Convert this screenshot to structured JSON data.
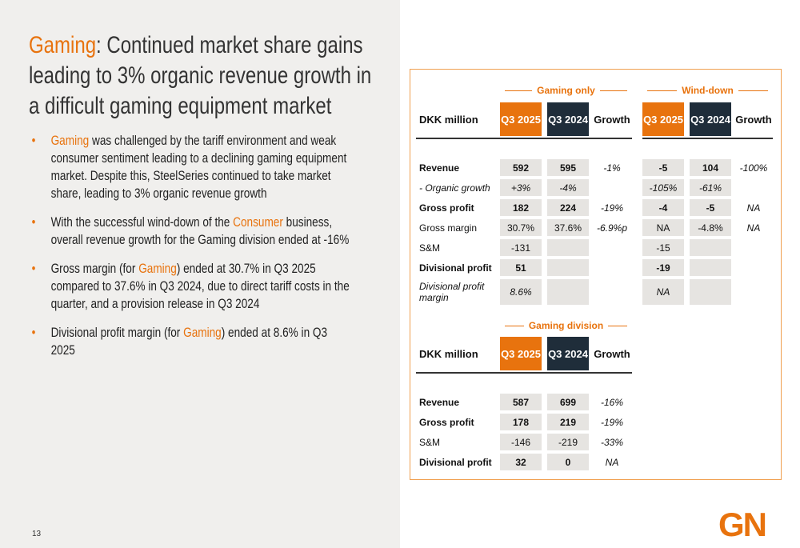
{
  "title": [
    {
      "text": "Gaming",
      "accent": true
    },
    {
      "text": ": Continued market share gains leading to 3% organic revenue growth in a difficult gaming equipment market",
      "accent": false
    }
  ],
  "bullets": [
    [
      {
        "text": "Gaming",
        "accent": true
      },
      {
        "text": " was challenged by the tariff environment and weak consumer sentiment leading to a declining gaming equipment market. Despite this, SteelSeries continued to take market share, leading to 3% organic revenue growth",
        "accent": false
      }
    ],
    [
      {
        "text": "With the successful wind-down of the ",
        "accent": false
      },
      {
        "text": "Consumer",
        "accent": true
      },
      {
        "text": " business, overall revenue growth for the Gaming division ended at -16%",
        "accent": false
      }
    ],
    [
      {
        "text": "Gross margin (for ",
        "accent": false
      },
      {
        "text": "Gaming",
        "accent": true
      },
      {
        "text": ") ended at 30.7% in Q3 2025 compared to 37.6% in Q3 2024, due to direct tariff costs in the quarter, and a provision release in Q3 2024",
        "accent": false
      }
    ],
    [
      {
        "text": "Divisional profit margin (for ",
        "accent": false
      },
      {
        "text": "Gaming",
        "accent": true
      },
      {
        "text": ") ended at 8.6% in Q3 2025",
        "accent": false
      }
    ]
  ],
  "table1": {
    "groups": [
      "Gaming only",
      "Wind-down"
    ],
    "header": [
      "DKK million",
      "Q3 2025",
      "Q3 2024",
      "Growth",
      "Q3 2025",
      "Q3 2024",
      "Growth"
    ],
    "rows": [
      {
        "style": "bold",
        "cells": [
          "Revenue",
          "592",
          "595",
          "-1%",
          "-5",
          "104",
          "-100%"
        ]
      },
      {
        "style": "italic",
        "cells": [
          "- Organic growth",
          "+3%",
          "-4%",
          null,
          "-105%",
          "-61%",
          null
        ]
      },
      {
        "style": "bold",
        "cells": [
          "Gross profit",
          "182",
          "224",
          "-19%",
          "-4",
          "-5",
          "NA"
        ]
      },
      {
        "style": "normal",
        "cells": [
          "Gross margin",
          "30.7%",
          "37.6%",
          "-6.9%p",
          "NA",
          "-4.8%",
          "NA"
        ]
      },
      {
        "style": "normal",
        "cells": [
          "S&M",
          "-131",
          null,
          null,
          "-15",
          null,
          null
        ]
      },
      {
        "style": "bold",
        "cells": [
          "Divisional profit",
          "51",
          null,
          null,
          "-19",
          null,
          null
        ]
      },
      {
        "style": "italic",
        "cells": [
          "Divisional profit margin",
          "8.6%",
          null,
          null,
          "NA",
          null,
          null
        ]
      }
    ]
  },
  "table2": {
    "groups": [
      "Gaming division"
    ],
    "header": [
      "DKK million",
      "Q3 2025",
      "Q3 2024",
      "Growth"
    ],
    "rows": [
      {
        "style": "bold",
        "cells": [
          "Revenue",
          "587",
          "699",
          "-16%"
        ]
      },
      {
        "style": "bold",
        "cells": [
          "Gross profit",
          "178",
          "219",
          "-19%"
        ]
      },
      {
        "style": "normal",
        "cells": [
          "S&M",
          "-146",
          "-219",
          "-33%"
        ]
      },
      {
        "style": "bold",
        "cells": [
          "Divisional profit",
          "32",
          "0",
          "NA"
        ]
      }
    ]
  },
  "page_number": "13",
  "logo": "GN"
}
